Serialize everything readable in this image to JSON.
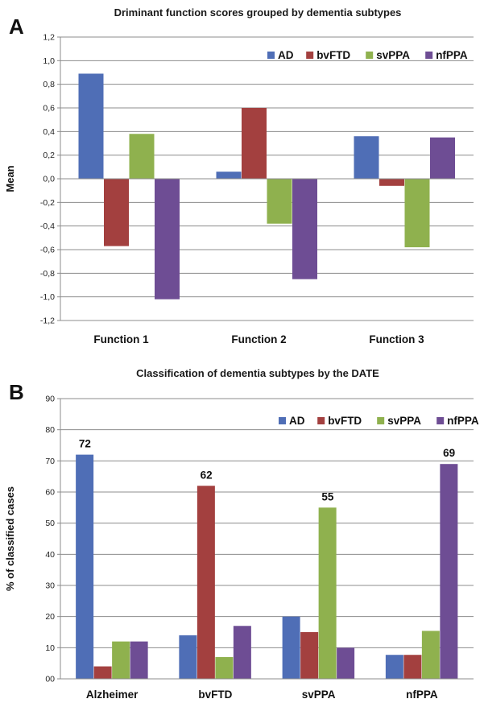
{
  "colors": {
    "AD": "#4F6EB6",
    "bvFTD": "#A3403F",
    "svPPA": "#8FB14E",
    "nfPPA": "#6E4D94"
  },
  "chart_data": [
    {
      "panel": "A",
      "type": "bar",
      "title": "Driminant function scores grouped by dementia subtypes",
      "xlabel": "",
      "ylabel": "Mean",
      "ylim": [
        -1.2,
        1.2
      ],
      "yticks": [
        "1,2",
        "1,0",
        "0,8",
        "0,6",
        "0,4",
        "0,2",
        "0,0",
        "-0,2",
        "-0,4",
        "-0,6",
        "-0,8",
        "-1,0",
        "-1,2"
      ],
      "categories": [
        "Function 1",
        "Function 2",
        "Function 3"
      ],
      "series": [
        {
          "name": "AD",
          "values": [
            0.89,
            0.06,
            0.36
          ]
        },
        {
          "name": "bvFTD",
          "values": [
            -0.57,
            0.6,
            -0.06
          ]
        },
        {
          "name": "svPPA",
          "values": [
            0.38,
            -0.38,
            -0.58
          ]
        },
        {
          "name": "nfPPA",
          "values": [
            -1.02,
            -0.85,
            0.35
          ]
        }
      ],
      "grid": true,
      "legend": "top-right"
    },
    {
      "panel": "B",
      "type": "bar",
      "title": "Classification of dementia subtypes by the DATE",
      "xlabel": "",
      "ylabel": "% of classified cases",
      "ylim": [
        0,
        90
      ],
      "yticks": [
        "90",
        "80",
        "70",
        "60",
        "50",
        "40",
        "30",
        "20",
        "10",
        "00"
      ],
      "categories": [
        "Alzheimer",
        "bvFTD",
        "svPPA",
        "nfPPA"
      ],
      "series": [
        {
          "name": "AD",
          "values": [
            72,
            14,
            20,
            7.7
          ]
        },
        {
          "name": "bvFTD",
          "values": [
            4,
            62,
            15,
            7.7
          ]
        },
        {
          "name": "svPPA",
          "values": [
            12,
            7,
            55,
            15.4
          ]
        },
        {
          "name": "nfPPA",
          "values": [
            12,
            17,
            10,
            69
          ]
        }
      ],
      "data_labels": [
        "72",
        "62",
        "55",
        "69"
      ],
      "grid": true,
      "legend": "top-right"
    }
  ]
}
